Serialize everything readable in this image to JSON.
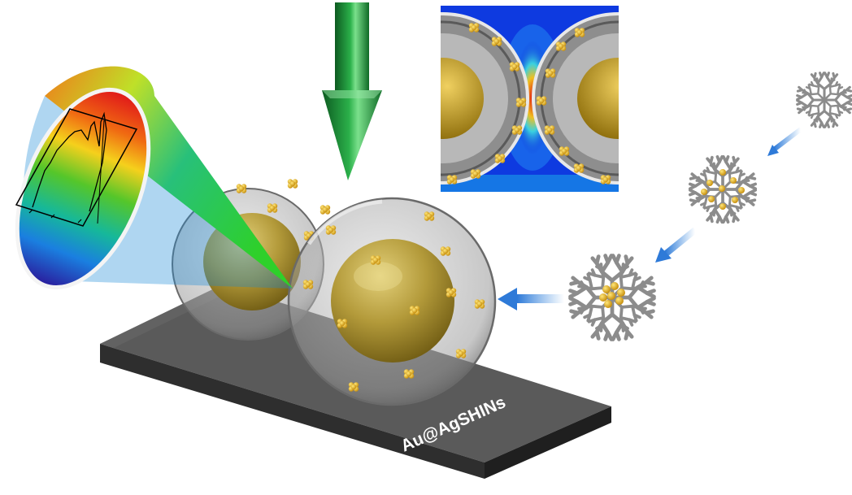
{
  "substrate": {
    "label": "Au@AgSHINs"
  },
  "raman_inset": {
    "tick_labels": [
      "",
      "",
      ""
    ],
    "axis_title": ""
  },
  "colors": {
    "gold_core": "#a8891f",
    "gold_cluster": "#e6b21a",
    "silver_shell": "#b9b9b9",
    "arrow_green": "#1e8a3a",
    "arrow_blue": "#3f8de0",
    "dendrimer_gray": "#8c8c8c",
    "field_background": "#0a2bd6",
    "substrate_top": "#5a5a5a"
  },
  "icons": [
    "laser-arrow-icon",
    "dendrimer-icon",
    "gold-cluster-icon",
    "blue-arrow-icon"
  ]
}
